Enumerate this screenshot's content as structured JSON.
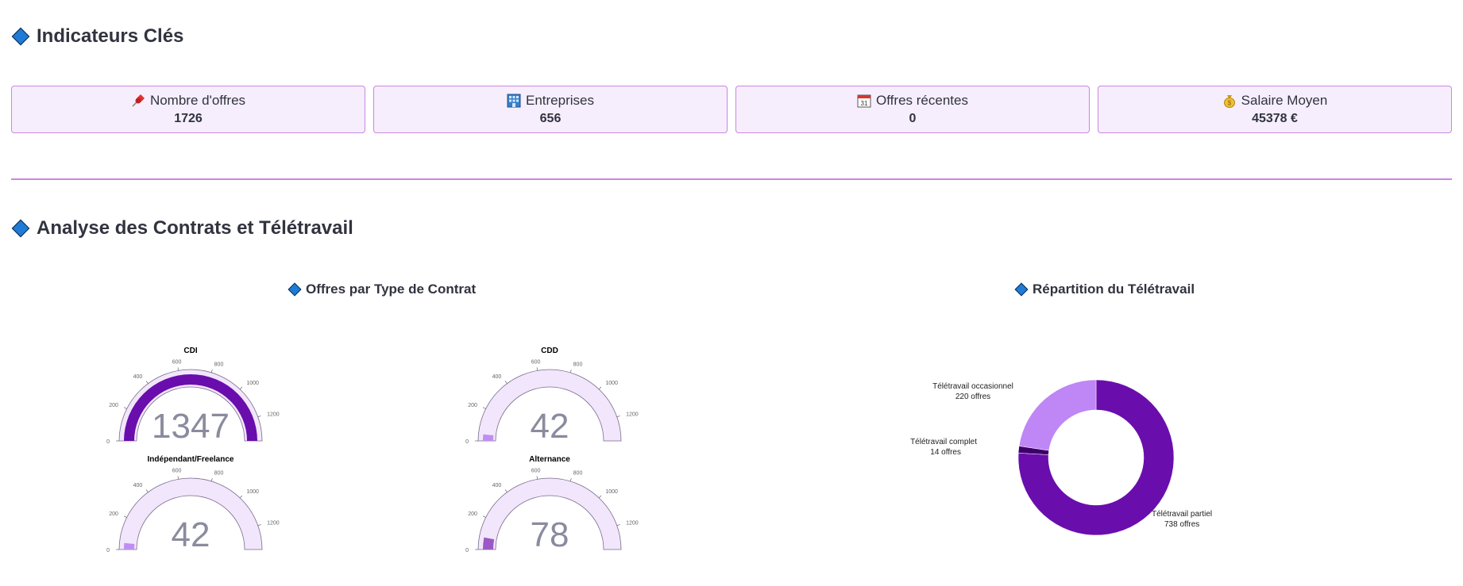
{
  "sections": {
    "indicators_title": "Indicateurs Clés",
    "analysis_title": "Analyse des Contrats et Télétravail"
  },
  "kpis": [
    {
      "icon": "pushpin-icon",
      "label": "Nombre d'offres",
      "value": "1726"
    },
    {
      "icon": "building-icon",
      "label": "Entreprises",
      "value": "656"
    },
    {
      "icon": "calendar-icon",
      "label": "Offres récentes",
      "value": "0",
      "calendar_day": "31"
    },
    {
      "icon": "money-bag-icon",
      "label": "Salaire Moyen",
      "value": "45378 €"
    }
  ],
  "charts": {
    "contracts_title": "Offres par Type de Contrat",
    "remote_title": "Répartition du Télétravail"
  },
  "colors": {
    "accent": "#c987e0",
    "card_bg": "#f6eefd",
    "gauge_bg": "#f1e6fb",
    "gauge_bar": "#6a0dad",
    "gauge_bar_light": "#c08ef2",
    "gauge_bar_mid": "#9b59c6",
    "donut_dark": "#6a0dad",
    "donut_light": "#bf86f5",
    "donut_darkest": "#3d006b",
    "number": "#8a8b9e"
  },
  "chart_data": [
    {
      "type": "gauge",
      "axis_ticks": [
        0,
        200,
        400,
        600,
        800,
        1000,
        1200
      ],
      "ylim": [
        0,
        1347
      ],
      "gauges": [
        {
          "name": "CDI",
          "value": 1347,
          "display": "1347",
          "bar": "dark"
        },
        {
          "name": "CDD",
          "value": 42,
          "display": "42",
          "bar": "light"
        },
        {
          "name": "Indépendant/Freelance",
          "value": 42,
          "display": "42",
          "bar": "light"
        },
        {
          "name": "Alternance",
          "value": 78,
          "display": "78",
          "bar": "mid"
        }
      ]
    },
    {
      "type": "pie",
      "slices": [
        {
          "name": "Télétravail partiel",
          "value": 738,
          "label": "738 offres",
          "color": "dark"
        },
        {
          "name": "Télétravail complet",
          "value": 14,
          "label": "14 offres",
          "color": "darkest"
        },
        {
          "name": "Télétravail occasionnel",
          "value": 220,
          "label": "220 offres",
          "color": "light"
        }
      ]
    }
  ]
}
